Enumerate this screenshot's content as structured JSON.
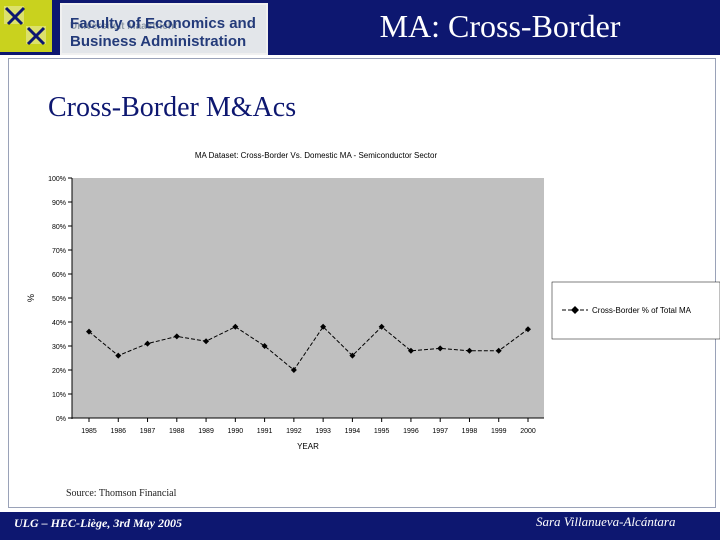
{
  "header": {
    "title": "MA: Cross-Border",
    "logo_faculty_line1": "Faculty of Economics and",
    "logo_faculty_line2": "Business Administration",
    "logo_university": "Universiteit Maastricht"
  },
  "slide": {
    "heading": "Cross-Border M&Acs",
    "source": "Source: Thomson Financial"
  },
  "footer": {
    "left": "ULG – HEC-Liège, 3rd May 2005",
    "right": "Sara Villanueva-Alcántara"
  },
  "colors": {
    "header_bg": "#0d1770",
    "plot_bg": "#c0c0c0",
    "series_line": "#000000"
  },
  "chart_data": {
    "type": "line",
    "title": "MA Dataset: Cross-Border Vs. Domestic MA - Semiconductor Sector",
    "xlabel": "YEAR",
    "ylabel": "%",
    "categories": [
      "1985",
      "1986",
      "1987",
      "1988",
      "1989",
      "1990",
      "1991",
      "1992",
      "1993",
      "1994",
      "1995",
      "1996",
      "1997",
      "1998",
      "1999",
      "2000"
    ],
    "y_ticks": [
      "0%",
      "10%",
      "20%",
      "30%",
      "40%",
      "50%",
      "60%",
      "70%",
      "80%",
      "90%",
      "100%"
    ],
    "ylim": [
      0,
      100
    ],
    "grid": false,
    "legend_position": "right",
    "series": [
      {
        "name": "Cross-Border % of Total MA",
        "values": [
          36,
          26,
          31,
          34,
          32,
          38,
          30,
          20,
          38,
          26,
          38,
          28,
          29,
          28,
          28,
          37
        ]
      }
    ]
  }
}
